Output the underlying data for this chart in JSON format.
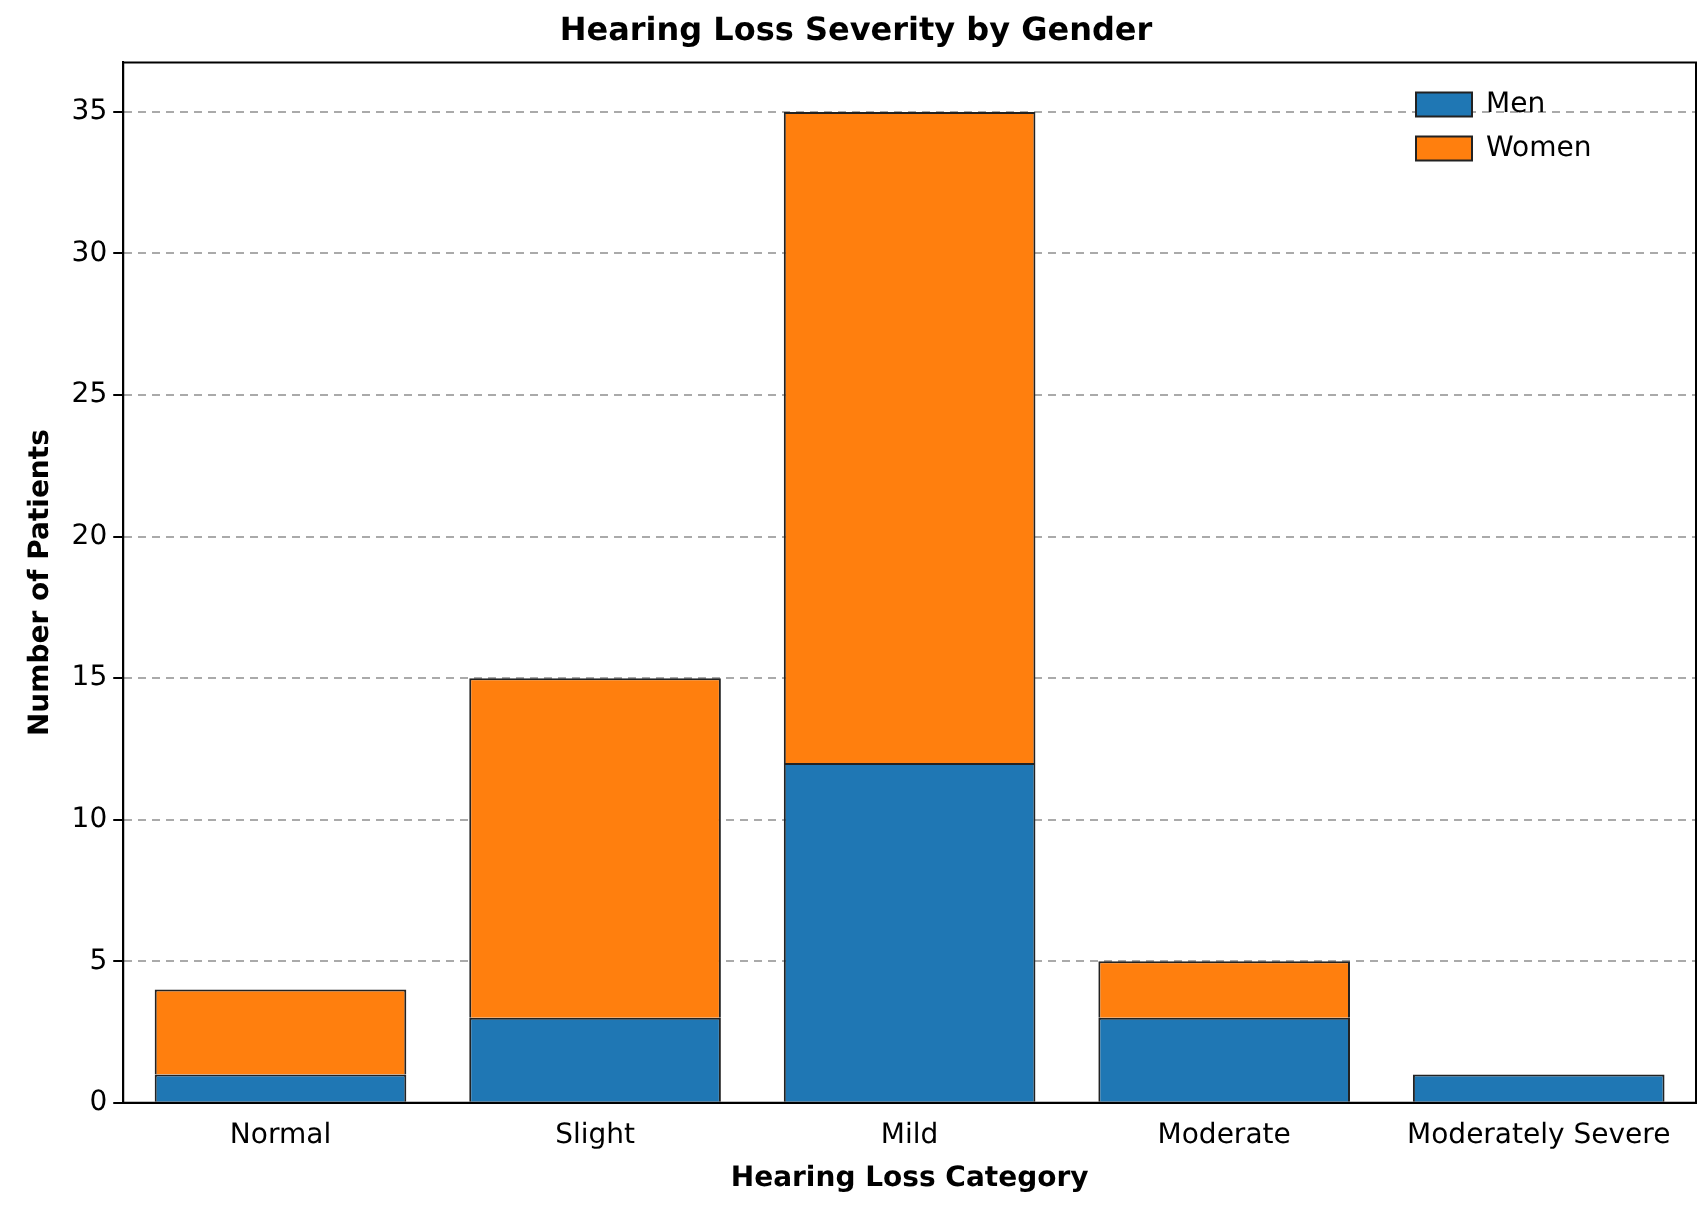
{
  "chart_data": {
    "type": "bar",
    "title": "Hearing Loss Severity by Gender",
    "xlabel": "Hearing Loss Category",
    "ylabel": "Number of Patients",
    "categories": [
      "Normal",
      "Slight",
      "Mild",
      "Moderate",
      "Moderately Severe"
    ],
    "series": [
      {
        "name": "Men",
        "color": "#1f77b4",
        "values": [
          1,
          3,
          12,
          3,
          1
        ]
      },
      {
        "name": "Women",
        "color": "#ff7f0e",
        "values": [
          3,
          12,
          23,
          2,
          0
        ]
      }
    ],
    "stacked": true,
    "ylim": [
      0,
      36.75
    ],
    "yticks": [
      0,
      5,
      10,
      15,
      20,
      25,
      30,
      35
    ],
    "grid": "y",
    "legend": "top right"
  }
}
